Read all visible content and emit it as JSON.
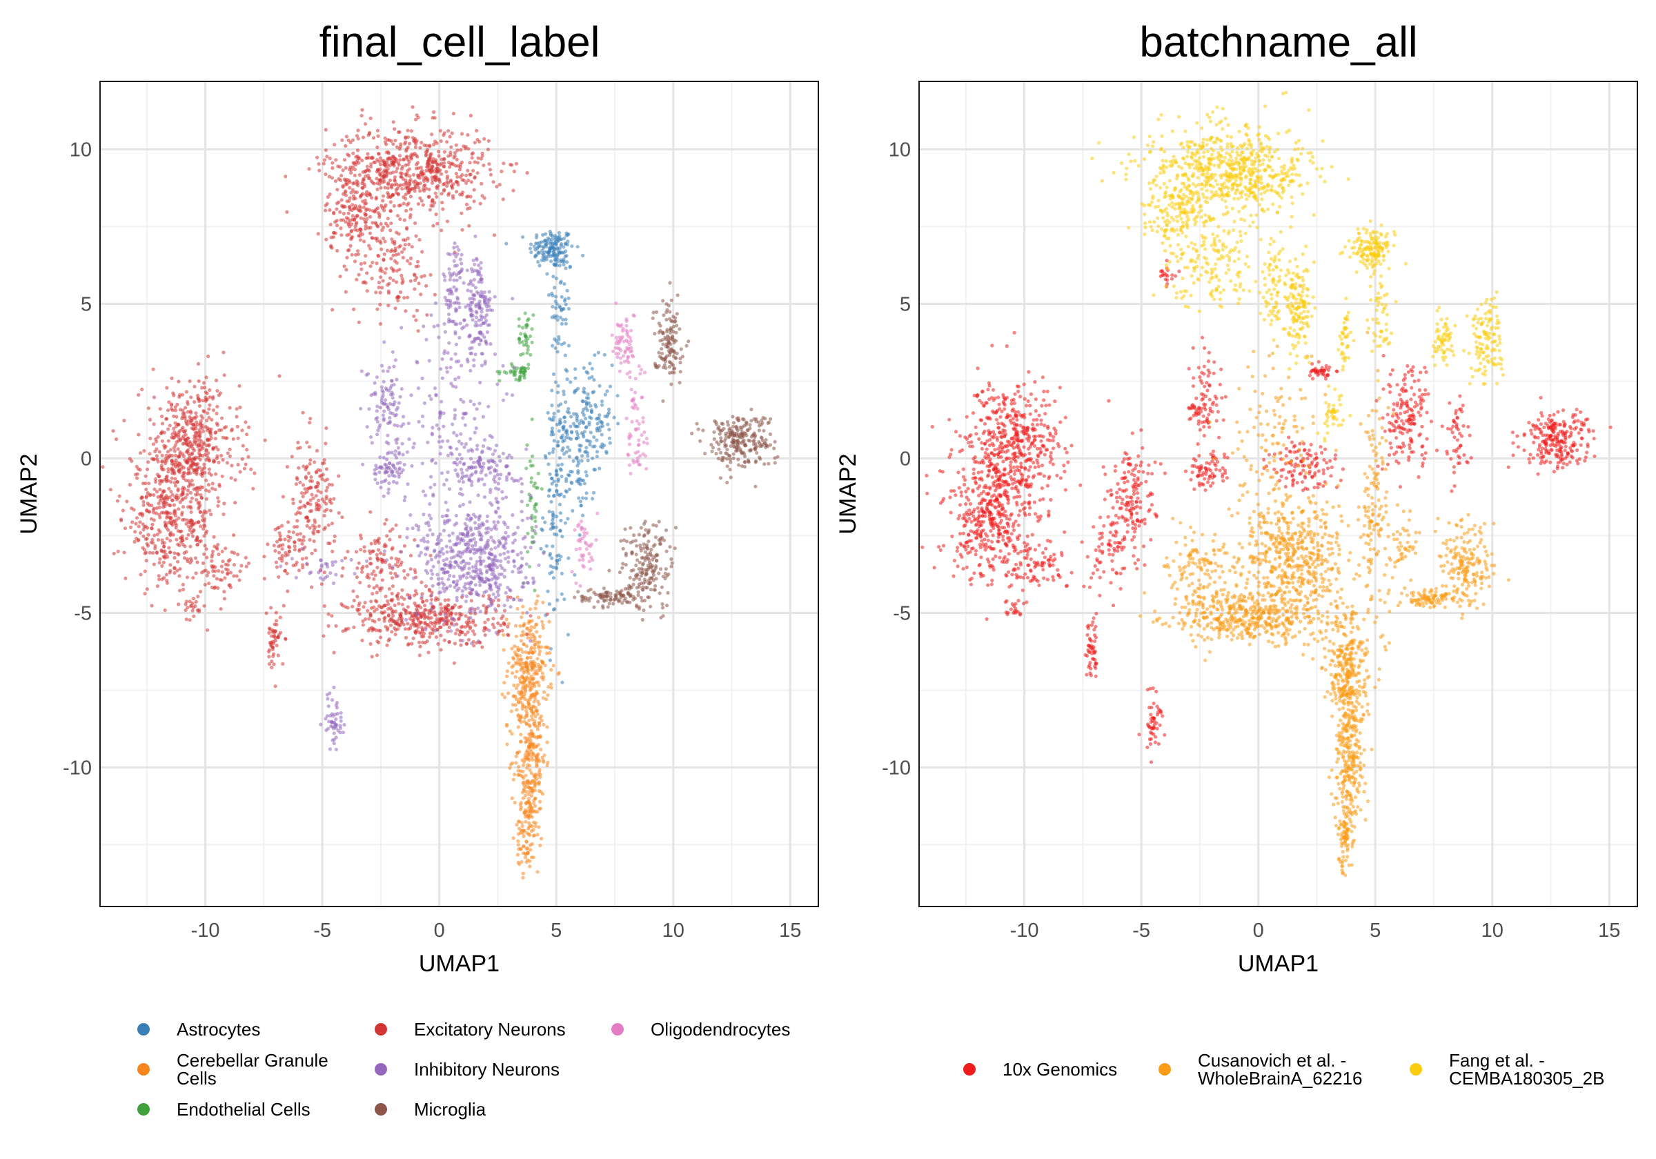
{
  "chart_data": [
    {
      "type": "scatter",
      "title": "final_cell_label",
      "xlabel": "UMAP1",
      "ylabel": "UMAP2",
      "xlim": [
        -14.5,
        16.2
      ],
      "ylim": [
        -14.5,
        12.2
      ],
      "xticks": [
        -10,
        -5,
        0,
        5,
        10,
        15
      ],
      "yticks": [
        10,
        5,
        0,
        -5,
        -10
      ],
      "grid": true,
      "legend_position": "bottom",
      "series": [
        {
          "name": "Astrocytes",
          "color": "#3a7fb8",
          "clusters": [
            [
              4.8,
              6.8,
              0.6,
              0.4,
              140
            ],
            [
              5.2,
              5.0,
              0.3,
              1.2,
              60
            ],
            [
              6.3,
              1.3,
              0.7,
              1.1,
              160
            ],
            [
              5.0,
              -1.5,
              0.35,
              2.5,
              140
            ],
            [
              6.0,
              -0.5,
              0.4,
              0.9,
              50
            ]
          ]
        },
        {
          "name": "Cerebellar Granule Cells",
          "color": "#f7861f",
          "clusters": [
            [
              3.8,
              -6.8,
              0.55,
              1.2,
              260
            ],
            [
              3.9,
              -9.6,
              0.4,
              1.8,
              280
            ],
            [
              3.7,
              -12.2,
              0.25,
              0.8,
              70
            ]
          ]
        },
        {
          "name": "Endothelial Cells",
          "color": "#3fa23f",
          "clusters": [
            [
              3.3,
              2.8,
              0.45,
              0.15,
              40
            ],
            [
              3.7,
              3.9,
              0.2,
              0.6,
              40
            ],
            [
              4.0,
              -1.5,
              0.15,
              1.5,
              40
            ]
          ]
        },
        {
          "name": "Excitatory Neurons",
          "color": "#d43535",
          "clusters": [
            [
              -1.3,
              9.3,
              2.2,
              0.9,
              650
            ],
            [
              -3.5,
              7.8,
              0.9,
              0.8,
              150
            ],
            [
              -2.0,
              6.2,
              1.2,
              1.0,
              140
            ],
            [
              -10.6,
              0.4,
              1.3,
              1.3,
              480
            ],
            [
              -11.5,
              -2.0,
              1.2,
              1.3,
              380
            ],
            [
              -9.5,
              -3.5,
              1.0,
              0.5,
              80
            ],
            [
              -5.4,
              -1.4,
              0.6,
              1.2,
              160
            ],
            [
              -6.5,
              -3.0,
              0.5,
              0.7,
              60
            ],
            [
              -0.5,
              -5.2,
              2.1,
              0.55,
              420
            ],
            [
              -2.5,
              -3.5,
              0.9,
              0.8,
              120
            ],
            [
              -7.1,
              -6.0,
              0.2,
              0.6,
              50
            ],
            [
              -10.5,
              -4.8,
              0.3,
              0.2,
              20
            ]
          ]
        },
        {
          "name": "Inhibitory Neurons",
          "color": "#9467bd",
          "clusters": [
            [
              1.7,
              4.8,
              0.35,
              1.1,
              140
            ],
            [
              0.6,
              5.5,
              0.3,
              1.0,
              70
            ],
            [
              -2.3,
              1.8,
              0.5,
              0.8,
              90
            ],
            [
              -2.1,
              -0.3,
              0.5,
              0.4,
              70
            ],
            [
              2.0,
              -0.3,
              1.0,
              0.5,
              110
            ],
            [
              1.5,
              -3.3,
              1.5,
              1.2,
              520
            ],
            [
              -4.5,
              -8.5,
              0.25,
              0.6,
              50
            ],
            [
              0.5,
              1.5,
              1.2,
              2.5,
              180
            ],
            [
              -5.0,
              -3.5,
              0.8,
              0.3,
              30
            ]
          ]
        },
        {
          "name": "Microglia",
          "color": "#8c564b",
          "clusters": [
            [
              9.8,
              3.8,
              0.4,
              0.8,
              120
            ],
            [
              12.8,
              0.6,
              0.9,
              0.55,
              230
            ],
            [
              8.9,
              -3.5,
              0.7,
              0.9,
              180
            ],
            [
              7.2,
              -4.5,
              0.8,
              0.2,
              90
            ]
          ]
        },
        {
          "name": "Oligodendrocytes",
          "color": "#e37cc3",
          "clusters": [
            [
              7.9,
              3.8,
              0.3,
              0.6,
              60
            ],
            [
              8.5,
              1.0,
              0.3,
              1.5,
              60
            ],
            [
              6.2,
              -2.8,
              0.3,
              0.6,
              40
            ]
          ]
        }
      ]
    },
    {
      "type": "scatter",
      "title": "batchname_all",
      "xlabel": "UMAP1",
      "ylabel": "UMAP2",
      "xlim": [
        -14.5,
        16.2
      ],
      "ylim": [
        -14.5,
        12.2
      ],
      "xticks": [
        -10,
        -5,
        0,
        5,
        10,
        15
      ],
      "yticks": [
        10,
        5,
        0,
        -5,
        -10
      ],
      "grid": true,
      "legend_position": "bottom",
      "series": [
        {
          "name": "10x Genomics",
          "color": "#ee1c1c",
          "clusters": [
            [
              -10.6,
              0.4,
              1.3,
              1.3,
              480
            ],
            [
              -11.5,
              -2.0,
              1.2,
              1.3,
              380
            ],
            [
              -9.5,
              -3.5,
              1.0,
              0.5,
              80
            ],
            [
              -5.4,
              -1.4,
              0.6,
              1.2,
              160
            ],
            [
              -6.5,
              -3.0,
              0.5,
              0.7,
              60
            ],
            [
              -2.3,
              1.8,
              0.5,
              0.8,
              90
            ],
            [
              -2.1,
              -0.3,
              0.5,
              0.4,
              70
            ],
            [
              2.0,
              -0.3,
              1.0,
              0.5,
              110
            ],
            [
              2.7,
              2.8,
              0.4,
              0.15,
              40
            ],
            [
              6.3,
              1.3,
              0.7,
              1.1,
              160
            ],
            [
              8.5,
              0.5,
              0.3,
              1.0,
              50
            ],
            [
              12.8,
              0.6,
              0.9,
              0.55,
              230
            ],
            [
              -4.5,
              -8.5,
              0.25,
              0.6,
              50
            ],
            [
              -7.1,
              -6.0,
              0.2,
              0.6,
              50
            ],
            [
              -10.5,
              -4.8,
              0.3,
              0.2,
              20
            ],
            [
              -3.8,
              6.0,
              0.3,
              0.3,
              20
            ]
          ]
        },
        {
          "name": "Cusanovich et al. - WholeBrainA_62216",
          "color": "#fa9b14",
          "clusters": [
            [
              3.8,
              -6.8,
              0.55,
              1.2,
              260
            ],
            [
              3.9,
              -9.6,
              0.4,
              1.8,
              280
            ],
            [
              3.7,
              -12.2,
              0.25,
              0.8,
              70
            ],
            [
              1.5,
              -3.3,
              1.5,
              1.2,
              520
            ],
            [
              -0.5,
              -5.2,
              2.1,
              0.55,
              420
            ],
            [
              5.0,
              -1.5,
              0.35,
              2.5,
              140
            ],
            [
              8.9,
              -3.5,
              0.7,
              0.9,
              180
            ],
            [
              7.2,
              -4.5,
              0.8,
              0.2,
              90
            ],
            [
              6.2,
              -2.8,
              0.3,
              0.6,
              40
            ],
            [
              -2.5,
              -3.5,
              0.9,
              0.8,
              120
            ],
            [
              0.5,
              0.5,
              1.2,
              2.0,
              120
            ]
          ]
        },
        {
          "name": "Fang et al. - CEMBA180305_2B",
          "color": "#fccc0f",
          "clusters": [
            [
              -1.3,
              9.3,
              2.2,
              0.9,
              650
            ],
            [
              -3.5,
              7.8,
              0.9,
              0.8,
              150
            ],
            [
              -2.0,
              6.2,
              1.2,
              1.0,
              140
            ],
            [
              4.8,
              6.8,
              0.6,
              0.4,
              140
            ],
            [
              5.2,
              5.0,
              0.3,
              1.2,
              60
            ],
            [
              1.7,
              4.8,
              0.35,
              1.1,
              140
            ],
            [
              0.6,
              5.5,
              0.3,
              1.0,
              70
            ],
            [
              9.8,
              3.8,
              0.4,
              0.8,
              120
            ],
            [
              7.9,
              3.8,
              0.3,
              0.6,
              60
            ],
            [
              3.0,
              1.5,
              0.4,
              0.6,
              40
            ],
            [
              3.7,
              3.9,
              0.2,
              0.6,
              40
            ]
          ]
        }
      ]
    }
  ],
  "legends": [
    {
      "items": [
        {
          "lines": [
            "Astrocytes"
          ],
          "color": "#3a7fb8"
        },
        {
          "lines": [
            "Cerebellar Granule",
            "Cells"
          ],
          "color": "#f7861f"
        },
        {
          "lines": [
            "Endothelial Cells"
          ],
          "color": "#3fa23f"
        },
        {
          "lines": [
            "Excitatory Neurons"
          ],
          "color": "#d43535"
        },
        {
          "lines": [
            "Inhibitory Neurons"
          ],
          "color": "#9467bd"
        },
        {
          "lines": [
            "Microglia"
          ],
          "color": "#8c564b"
        },
        {
          "lines": [
            "Oligodendrocytes"
          ],
          "color": "#e37cc3"
        }
      ]
    },
    {
      "items": [
        {
          "lines": [
            "10x Genomics"
          ],
          "color": "#ee1c1c"
        },
        {
          "lines": [
            "Cusanovich et al. -",
            "WholeBrainA_62216"
          ],
          "color": "#fa9b14"
        },
        {
          "lines": [
            "Fang et al. -",
            "CEMBA180305_2B"
          ],
          "color": "#fccc0f"
        }
      ]
    }
  ]
}
